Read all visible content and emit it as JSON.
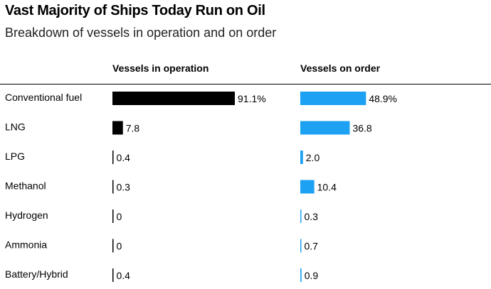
{
  "title": "Vast Majority of Ships Today Run on Oil",
  "subtitle": "Breakdown of vessels in operation and on order",
  "chart_data": {
    "type": "bar",
    "orientation": "horizontal",
    "title": "Vast Majority of Ships Today Run on Oil",
    "subtitle": "Breakdown of vessels in operation and on order",
    "categories": [
      "Conventional fuel",
      "LNG",
      "LPG",
      "Methanol",
      "Hydrogen",
      "Ammonia",
      "Battery/Hybrid"
    ],
    "series": [
      {
        "name": "Vessels in operation",
        "color": "#000000",
        "values": [
          91.1,
          7.8,
          0.4,
          0.3,
          0,
          0,
          0.4
        ],
        "labels": [
          "91.1%",
          "7.8",
          "0.4",
          "0.3",
          "0",
          "0",
          "0.4"
        ]
      },
      {
        "name": "Vessels on order",
        "color": "#1da1f2",
        "values": [
          48.9,
          36.8,
          2.0,
          10.4,
          0.3,
          0.7,
          0.9
        ],
        "labels": [
          "48.9%",
          "36.8",
          "2.0",
          "10.4",
          "0.3",
          "0.7",
          "0.9"
        ]
      }
    ],
    "grid": false,
    "legend": "column headers"
  }
}
